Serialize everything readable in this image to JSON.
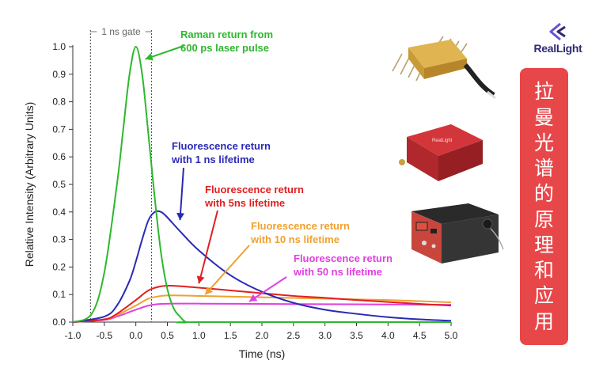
{
  "chart_data": {
    "type": "line",
    "xlabel": "Time (ns)",
    "ylabel": "Relative Intensity (Arbitrary Units)",
    "xlim": [
      -1.0,
      5.0
    ],
    "ylim": [
      0.0,
      1.0
    ],
    "x_ticks": [
      "-1.0",
      "-0.5",
      "0.0",
      "0.5",
      "1.0",
      "1.5",
      "2.0",
      "2.5",
      "3.0",
      "3.5",
      "4.0",
      "4.5",
      "5.0"
    ],
    "y_ticks": [
      "0.0",
      "0.1",
      "0.2",
      "0.3",
      "0.4",
      "0.5",
      "0.6",
      "0.7",
      "0.8",
      "0.9",
      "1.0"
    ],
    "grid": false,
    "gate": {
      "label": "1 ns gate",
      "start": -0.72,
      "end": 0.25
    },
    "series": [
      {
        "name": "Raman return from 600 ps laser pulse",
        "color": "#2eb82e",
        "x": [
          -1.0,
          -0.7,
          -0.5,
          -0.3,
          -0.2,
          -0.1,
          0.0,
          0.1,
          0.2,
          0.3,
          0.4,
          0.5,
          0.6,
          0.7,
          0.8,
          1.0,
          5.0
        ],
        "y": [
          0.0,
          0.03,
          0.18,
          0.5,
          0.7,
          0.9,
          1.0,
          0.9,
          0.68,
          0.45,
          0.25,
          0.12,
          0.05,
          0.02,
          0.0,
          0.0,
          0.0
        ]
      },
      {
        "name": "Fluorescence return with 1 ns lifetime",
        "color": "#2a2ab5",
        "x": [
          -1.0,
          -0.5,
          -0.3,
          -0.1,
          0.0,
          0.1,
          0.2,
          0.3,
          0.4,
          0.5,
          0.7,
          1.0,
          1.5,
          2.0,
          2.5,
          3.0,
          3.5,
          4.0,
          4.5,
          5.0
        ],
        "y": [
          0.0,
          0.02,
          0.06,
          0.15,
          0.22,
          0.3,
          0.37,
          0.4,
          0.4,
          0.38,
          0.33,
          0.26,
          0.17,
          0.11,
          0.07,
          0.045,
          0.03,
          0.018,
          0.01,
          0.005
        ]
      },
      {
        "name": "Fluorescence return with 5ns lifetime",
        "color": "#e02020",
        "x": [
          -1.0,
          -0.5,
          -0.3,
          0.0,
          0.2,
          0.4,
          0.6,
          1.0,
          1.5,
          2.0,
          2.5,
          3.0,
          3.5,
          4.0,
          4.5,
          5.0
        ],
        "y": [
          0.0,
          0.01,
          0.03,
          0.08,
          0.115,
          0.13,
          0.132,
          0.125,
          0.115,
          0.105,
          0.095,
          0.088,
          0.08,
          0.073,
          0.066,
          0.06
        ]
      },
      {
        "name": "Fluorescence return with 10 ns lifetime",
        "color": "#f0a030",
        "x": [
          -1.0,
          -0.5,
          -0.3,
          0.0,
          0.2,
          0.4,
          0.6,
          1.0,
          2.0,
          3.0,
          4.0,
          5.0
        ],
        "y": [
          0.0,
          0.01,
          0.025,
          0.06,
          0.085,
          0.095,
          0.097,
          0.095,
          0.09,
          0.085,
          0.08,
          0.072
        ]
      },
      {
        "name": "Fluorescence return with 50 ns lifetime",
        "color": "#e040e0",
        "x": [
          -1.0,
          -0.5,
          -0.3,
          0.0,
          0.2,
          0.4,
          0.6,
          1.0,
          2.0,
          3.0,
          4.0,
          5.0
        ],
        "y": [
          0.0,
          0.008,
          0.02,
          0.045,
          0.06,
          0.066,
          0.067,
          0.067,
          0.066,
          0.065,
          0.064,
          0.063
        ]
      }
    ],
    "annotations": [
      {
        "line1": "Raman return from",
        "line2": "600 ps laser pulse",
        "color": "#2eb82e",
        "tip_x": 0.15,
        "tip_y": 0.955
      },
      {
        "line1": "Fluorescence return",
        "line2": "with 1 ns lifetime",
        "color": "#2a2ab5",
        "tip_x": 0.7,
        "tip_y": 0.37
      },
      {
        "line1": "Fluorescence return",
        "line2": "with 5ns lifetime",
        "color": "#e02020",
        "tip_x": 1.0,
        "tip_y": 0.14
      },
      {
        "line1": "Fluorescence return",
        "line2": "with 10 ns lifetime",
        "color": "#f0a030",
        "tip_x": 1.1,
        "tip_y": 0.1
      },
      {
        "line1": "Fluorescence return",
        "line2": "with 50 ns lifetime",
        "color": "#e040e0",
        "tip_x": 1.8,
        "tip_y": 0.075
      }
    ]
  },
  "brand": {
    "name": "RealLight",
    "color": "#2d2a72"
  },
  "banner": {
    "color": "#e8474a",
    "chars": [
      "拉",
      "曼",
      "光",
      "谱",
      "的",
      "原",
      "理",
      "和",
      "应",
      "用"
    ]
  }
}
